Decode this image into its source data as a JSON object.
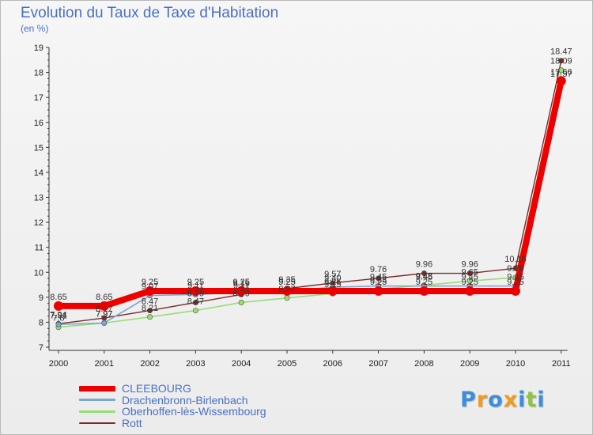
{
  "chart_data": {
    "type": "line",
    "title": "Evolution du Taux de Taxe d'Habitation",
    "subtitle": "(en %)",
    "xlabel": "",
    "ylabel": "",
    "ylim": [
      7,
      19
    ],
    "yticks": [
      "7",
      "8",
      "9",
      "10",
      "11",
      "12",
      "13",
      "14",
      "15",
      "16",
      "17",
      "18",
      "19"
    ],
    "categories": [
      "2000",
      "2001",
      "2002",
      "2003",
      "2004",
      "2005",
      "2006",
      "2007",
      "2008",
      "2009",
      "2010",
      "2011"
    ],
    "grid": false,
    "legend_position": "bottom-left",
    "series": [
      {
        "name": "CLEEBOURG",
        "color": "#ee0000",
        "values": [
          8.65,
          8.65,
          9.25,
          9.25,
          9.25,
          9.25,
          9.25,
          9.25,
          9.25,
          9.25,
          9.25,
          17.66
        ],
        "labels": [
          "8.65",
          "8.65",
          "9.25",
          "9.25",
          "9.25",
          "9.25",
          "9.25",
          "9.25",
          "9.25",
          "9.25",
          "9.25",
          "17.66"
        ]
      },
      {
        "name": "Drachenbronn-Birlenbach",
        "color": "#79a6d2",
        "values": [
          7.91,
          7.97,
          9.07,
          9.11,
          9.19,
          9.25,
          9.4,
          9.45,
          9.45,
          9.45,
          9.45,
          17.57
        ],
        "labels": [
          "7.91",
          "7.97",
          "9.07",
          "9.11",
          "9.19",
          "9.25",
          "9.40",
          "9.45",
          "9.45",
          "9.45",
          "9.45",
          "17.57"
        ]
      },
      {
        "name": "Oberhoffen-lès-Wissembourg",
        "color": "#99dd77",
        "values": [
          7.8,
          7.97,
          8.21,
          8.47,
          8.79,
          8.97,
          9.15,
          9.33,
          9.48,
          9.65,
          9.79,
          18.09
        ],
        "labels": [
          "7.8",
          "7.97",
          "8.21",
          "8.47",
          "8.79",
          "8.97",
          "9.15",
          "9.33",
          "9.48",
          "9.65",
          "9.79",
          "18.09"
        ]
      },
      {
        "name": "Rott",
        "color": "#7a2a2a",
        "values": [
          7.94,
          8.17,
          8.47,
          8.79,
          9.11,
          9.35,
          9.57,
          9.76,
          9.96,
          9.96,
          10.16,
          18.47
        ],
        "labels": [
          "7.94",
          "8.17",
          "8.47",
          "8.79",
          "9.11",
          "9.35",
          "9.57",
          "9.76",
          "9.96",
          "9.96",
          "10.16",
          "18.47"
        ]
      }
    ]
  },
  "logo": {
    "letters": [
      "P",
      "r",
      "o",
      "x",
      "i",
      "t",
      "i"
    ],
    "colors": [
      "#3b8ede",
      "#f39a1a",
      "#3b8ede",
      "#f39a1a",
      "#3b8ede",
      "#8cc63f",
      "#3b8ede"
    ]
  }
}
